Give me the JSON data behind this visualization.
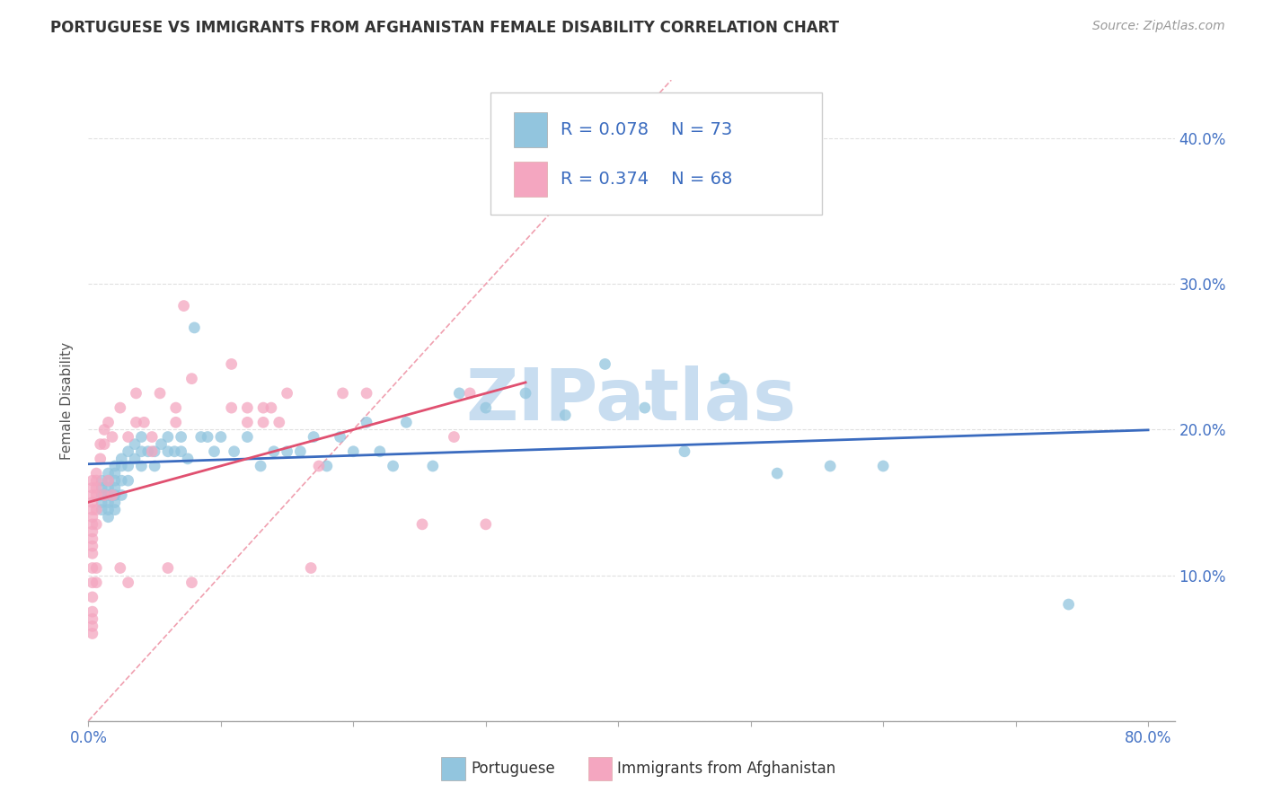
{
  "title": "PORTUGUESE VS IMMIGRANTS FROM AFGHANISTAN FEMALE DISABILITY CORRELATION CHART",
  "source": "Source: ZipAtlas.com",
  "ylabel": "Female Disability",
  "xlim": [
    0.0,
    0.82
  ],
  "ylim": [
    0.0,
    0.44
  ],
  "xtick_positions": [
    0.0,
    0.1,
    0.2,
    0.3,
    0.4,
    0.5,
    0.6,
    0.7,
    0.8
  ],
  "xtick_labels": [
    "0.0%",
    "",
    "",
    "",
    "",
    "",
    "",
    "",
    "80.0%"
  ],
  "ytick_positions": [
    0.0,
    0.1,
    0.2,
    0.3,
    0.4
  ],
  "ytick_labels_right": [
    "",
    "10.0%",
    "20.0%",
    "30.0%",
    "40.0%"
  ],
  "legend_r1_val": "0.078",
  "legend_n1_val": "73",
  "legend_r2_val": "0.374",
  "legend_n2_val": "68",
  "blue_scatter_color": "#92c5de",
  "pink_scatter_color": "#f4a6c0",
  "blue_line_color": "#3a6bbf",
  "pink_line_color": "#e05070",
  "diagonal_line_color": "#f0a0b0",
  "legend_text_color": "#3a6bbf",
  "watermark_color": "#c8ddf0",
  "grid_color": "#e0e0e0",
  "portuguese_x": [
    0.01,
    0.01,
    0.01,
    0.01,
    0.01,
    0.015,
    0.015,
    0.015,
    0.015,
    0.015,
    0.015,
    0.015,
    0.02,
    0.02,
    0.02,
    0.02,
    0.02,
    0.02,
    0.02,
    0.025,
    0.025,
    0.025,
    0.025,
    0.03,
    0.03,
    0.03,
    0.035,
    0.035,
    0.04,
    0.04,
    0.04,
    0.045,
    0.05,
    0.05,
    0.055,
    0.06,
    0.06,
    0.065,
    0.07,
    0.07,
    0.075,
    0.08,
    0.085,
    0.09,
    0.095,
    0.1,
    0.11,
    0.12,
    0.13,
    0.14,
    0.15,
    0.16,
    0.17,
    0.18,
    0.19,
    0.2,
    0.21,
    0.22,
    0.23,
    0.24,
    0.26,
    0.28,
    0.3,
    0.33,
    0.36,
    0.39,
    0.42,
    0.45,
    0.48,
    0.52,
    0.56,
    0.6,
    0.74
  ],
  "portuguese_y": [
    0.165,
    0.16,
    0.155,
    0.15,
    0.145,
    0.17,
    0.165,
    0.16,
    0.155,
    0.15,
    0.145,
    0.14,
    0.175,
    0.17,
    0.165,
    0.16,
    0.155,
    0.15,
    0.145,
    0.18,
    0.175,
    0.165,
    0.155,
    0.185,
    0.175,
    0.165,
    0.19,
    0.18,
    0.195,
    0.185,
    0.175,
    0.185,
    0.185,
    0.175,
    0.19,
    0.195,
    0.185,
    0.185,
    0.195,
    0.185,
    0.18,
    0.27,
    0.195,
    0.195,
    0.185,
    0.195,
    0.185,
    0.195,
    0.175,
    0.185,
    0.185,
    0.185,
    0.195,
    0.175,
    0.195,
    0.185,
    0.205,
    0.185,
    0.175,
    0.205,
    0.175,
    0.225,
    0.215,
    0.225,
    0.21,
    0.245,
    0.215,
    0.185,
    0.235,
    0.17,
    0.175,
    0.175,
    0.08
  ],
  "afghan_x": [
    0.003,
    0.003,
    0.003,
    0.003,
    0.003,
    0.003,
    0.003,
    0.003,
    0.003,
    0.003,
    0.003,
    0.003,
    0.003,
    0.003,
    0.003,
    0.003,
    0.003,
    0.003,
    0.006,
    0.006,
    0.006,
    0.006,
    0.006,
    0.006,
    0.006,
    0.006,
    0.009,
    0.009,
    0.012,
    0.012,
    0.012,
    0.015,
    0.015,
    0.018,
    0.018,
    0.024,
    0.024,
    0.03,
    0.03,
    0.036,
    0.036,
    0.042,
    0.048,
    0.048,
    0.054,
    0.06,
    0.066,
    0.066,
    0.072,
    0.078,
    0.078,
    0.108,
    0.108,
    0.12,
    0.12,
    0.132,
    0.132,
    0.138,
    0.144,
    0.15,
    0.168,
    0.174,
    0.192,
    0.21,
    0.252,
    0.276,
    0.288,
    0.3
  ],
  "afghan_y": [
    0.165,
    0.16,
    0.155,
    0.15,
    0.145,
    0.14,
    0.135,
    0.13,
    0.125,
    0.12,
    0.115,
    0.105,
    0.095,
    0.085,
    0.075,
    0.07,
    0.065,
    0.06,
    0.17,
    0.165,
    0.16,
    0.155,
    0.145,
    0.135,
    0.105,
    0.095,
    0.19,
    0.18,
    0.2,
    0.19,
    0.155,
    0.205,
    0.165,
    0.195,
    0.155,
    0.215,
    0.105,
    0.195,
    0.095,
    0.225,
    0.205,
    0.205,
    0.185,
    0.195,
    0.225,
    0.105,
    0.215,
    0.205,
    0.285,
    0.235,
    0.095,
    0.215,
    0.245,
    0.215,
    0.205,
    0.205,
    0.215,
    0.215,
    0.205,
    0.225,
    0.105,
    0.175,
    0.225,
    0.225,
    0.135,
    0.195,
    0.225,
    0.135
  ]
}
